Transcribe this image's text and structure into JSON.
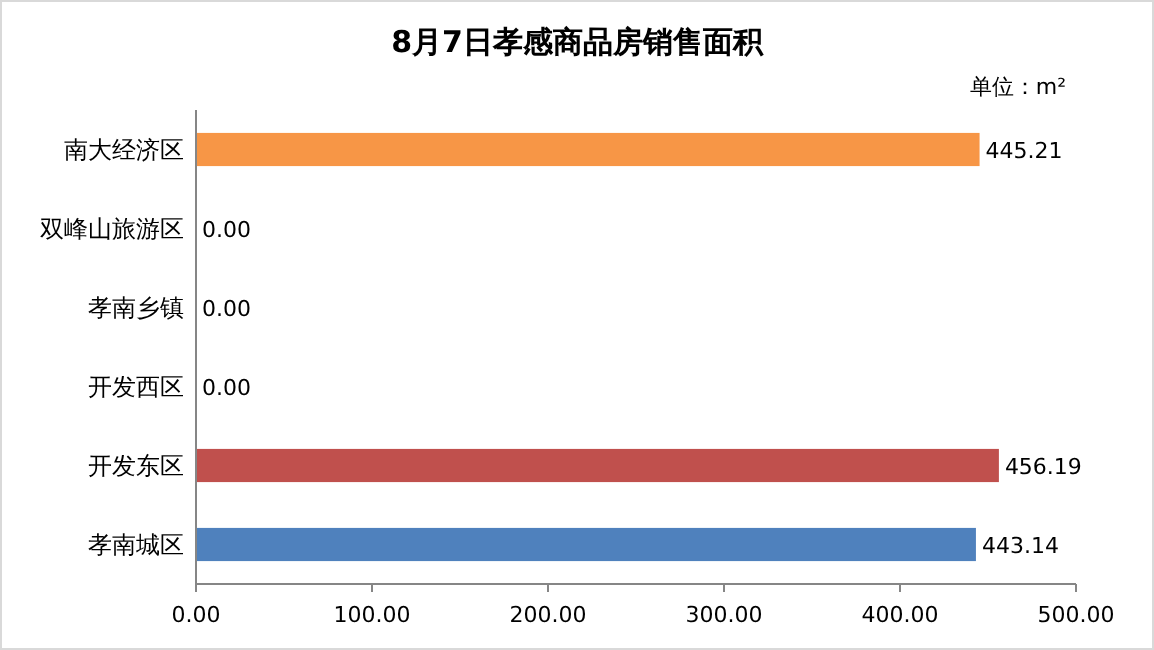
{
  "chart_data": {
    "type": "bar",
    "orientation": "horizontal",
    "title": "8月7日孝感商品房销售面积",
    "annotations": [
      "单位：m²"
    ],
    "categories": [
      "南大经济区",
      "双峰山旅游区",
      "孝南乡镇",
      "开发西区",
      "开发东区",
      "孝南城区"
    ],
    "values": [
      445.21,
      0,
      0,
      0,
      456.19,
      443.14
    ],
    "colors": [
      "#f79646",
      "#9bbb59",
      "#8064a2",
      "#4bacc6",
      "#c0504d",
      "#4f81bd"
    ],
    "value_labels": [
      "445.21",
      "0.00",
      "0.00",
      "0.00",
      "456.19",
      "443.14"
    ],
    "xlim": [
      0,
      500
    ],
    "xticks": [
      {
        "value": 0,
        "label": "0.00"
      },
      {
        "value": 100,
        "label": "100.00"
      },
      {
        "value": 200,
        "label": "200.00"
      },
      {
        "value": 300,
        "label": "300.00"
      },
      {
        "value": 400,
        "label": "400.00"
      },
      {
        "value": 500,
        "label": "500.00"
      }
    ],
    "grid": false
  }
}
